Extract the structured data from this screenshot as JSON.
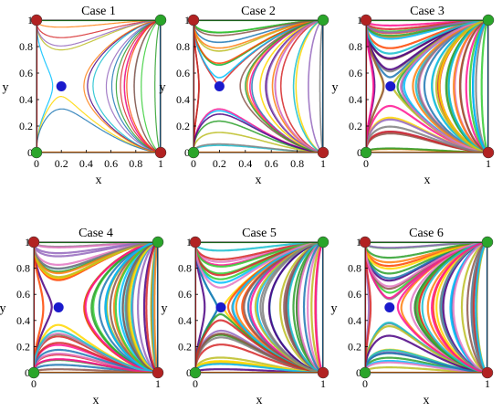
{
  "figure": {
    "panel_axis_labels": {
      "x": "x",
      "y": "y"
    },
    "palette": [
      "#1f77b4",
      "#ff7f0e",
      "#2ca02c",
      "#d62728",
      "#9467bd",
      "#8c564b",
      "#e377c2",
      "#17becf",
      "#bcbd22",
      "#7f7f7f",
      "#00bfff",
      "#ff1493",
      "#ffd700",
      "#32cd32",
      "#4b0082",
      "#ff4500"
    ],
    "marker_colors": {
      "corner_stable": "#2aa52a",
      "corner_unstable": "#b22222",
      "interior_saddle": "#1a1acc"
    }
  },
  "chart_data": [
    {
      "type": "phase-portrait",
      "title": "Case 1",
      "xlabel": "x",
      "ylabel": "y",
      "xlim": [
        0,
        1
      ],
      "ylim": [
        0,
        1
      ],
      "xticks": [
        "0",
        "0.2",
        "0.4",
        "0.6",
        "0.8",
        "1"
      ],
      "yticks": [
        "0",
        "0.2",
        "0.4",
        "0.6",
        "0.8",
        "1"
      ],
      "saddle": [
        0.2,
        0.5
      ],
      "corners": [
        {
          "x": 0,
          "y": 1,
          "kind": "unstable"
        },
        {
          "x": 1,
          "y": 1,
          "kind": "stable"
        },
        {
          "x": 0,
          "y": 0,
          "kind": "stable"
        },
        {
          "x": 1,
          "y": 0,
          "kind": "unstable"
        }
      ],
      "trajectory_density": "sparse"
    },
    {
      "type": "phase-portrait",
      "title": "Case 2",
      "xlabel": "x",
      "ylabel": "y",
      "xlim": [
        0,
        1
      ],
      "ylim": [
        0,
        1
      ],
      "xticks": [
        "0",
        "0.2",
        "0.4",
        "0.6",
        "0.8",
        "1"
      ],
      "yticks": [
        "0",
        "0.2",
        "0.4",
        "0.6",
        "0.8",
        "1"
      ],
      "saddle": [
        0.2,
        0.5
      ],
      "corners": [
        {
          "x": 0,
          "y": 1,
          "kind": "unstable"
        },
        {
          "x": 1,
          "y": 1,
          "kind": "stable"
        },
        {
          "x": 0,
          "y": 0,
          "kind": "stable"
        },
        {
          "x": 1,
          "y": 0,
          "kind": "unstable"
        }
      ],
      "trajectory_density": "medium"
    },
    {
      "type": "phase-portrait",
      "title": "Case 3",
      "xlabel": "x",
      "ylabel": "y",
      "xlim": [
        0,
        1
      ],
      "ylim": [
        0,
        1
      ],
      "xticks": [
        "0",
        "1"
      ],
      "yticks": [
        "0",
        "0.2",
        "0.4",
        "0.6",
        "0.8",
        "1"
      ],
      "saddle": [
        0.2,
        0.5
      ],
      "corners": [
        {
          "x": 0,
          "y": 1,
          "kind": "unstable"
        },
        {
          "x": 1,
          "y": 1,
          "kind": "stable"
        },
        {
          "x": 0,
          "y": 0,
          "kind": "stable"
        },
        {
          "x": 1,
          "y": 0,
          "kind": "unstable"
        }
      ],
      "trajectory_density": "dense"
    },
    {
      "type": "phase-portrait",
      "title": "Case 4",
      "xlabel": "x",
      "ylabel": "y",
      "xlim": [
        0,
        1
      ],
      "ylim": [
        0,
        1
      ],
      "xticks": [
        "0",
        "1"
      ],
      "yticks": [
        "0",
        "0.2",
        "0.4",
        "0.6",
        "0.8",
        "1"
      ],
      "saddle": [
        0.2,
        0.5
      ],
      "corners": [
        {
          "x": 0,
          "y": 1,
          "kind": "unstable"
        },
        {
          "x": 1,
          "y": 1,
          "kind": "stable"
        },
        {
          "x": 0,
          "y": 0,
          "kind": "stable"
        },
        {
          "x": 1,
          "y": 0,
          "kind": "unstable"
        }
      ],
      "trajectory_density": "dense"
    },
    {
      "type": "phase-portrait",
      "title": "Case 5",
      "xlabel": "x",
      "ylabel": "y",
      "xlim": [
        0,
        1
      ],
      "ylim": [
        0,
        1
      ],
      "xticks": [
        "0",
        "1"
      ],
      "yticks": [
        "0",
        "0.2",
        "0.4",
        "0.6",
        "0.8",
        "1"
      ],
      "saddle": [
        0.2,
        0.5
      ],
      "corners": [
        {
          "x": 0,
          "y": 1,
          "kind": "unstable"
        },
        {
          "x": 1,
          "y": 1,
          "kind": "stable"
        },
        {
          "x": 0,
          "y": 0,
          "kind": "stable"
        },
        {
          "x": 1,
          "y": 0,
          "kind": "unstable"
        }
      ],
      "trajectory_density": "dense"
    },
    {
      "type": "phase-portrait",
      "title": "Case 6",
      "xlabel": "x",
      "ylabel": "y",
      "xlim": [
        0,
        1
      ],
      "ylim": [
        0,
        1
      ],
      "xticks": [
        "0",
        "1"
      ],
      "yticks": [
        "0",
        "0.2",
        "0.4",
        "0.6",
        "0.8",
        "1"
      ],
      "saddle": [
        0.2,
        0.5
      ],
      "corners": [
        {
          "x": 0,
          "y": 1,
          "kind": "unstable"
        },
        {
          "x": 1,
          "y": 1,
          "kind": "stable"
        },
        {
          "x": 0,
          "y": 0,
          "kind": "stable"
        },
        {
          "x": 1,
          "y": 0,
          "kind": "unstable"
        }
      ],
      "trajectory_density": "dense"
    }
  ]
}
